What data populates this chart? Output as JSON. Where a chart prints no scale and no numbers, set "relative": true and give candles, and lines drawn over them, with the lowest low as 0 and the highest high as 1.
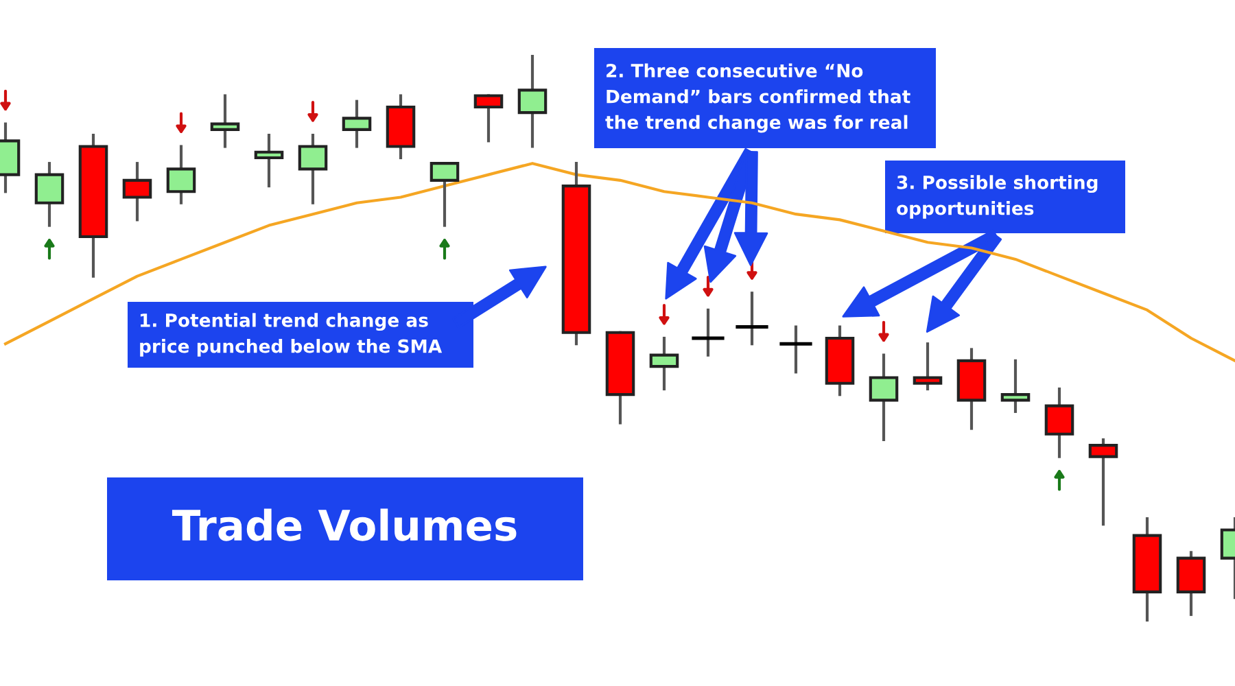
{
  "chart_data": {
    "type": "candlestick",
    "relative": true,
    "title": "Trade Volumes",
    "categories": [
      null,
      null,
      null,
      null,
      null,
      null,
      null,
      null,
      null,
      null,
      null,
      null,
      null,
      null,
      null,
      null,
      null,
      null,
      null,
      null,
      null,
      null,
      null,
      null,
      null,
      null,
      null,
      null,
      null
    ],
    "ohlc": [
      [
        0.79,
        0.88,
        0.76,
        0.85
      ],
      [
        0.74,
        0.81,
        0.7,
        0.79
      ],
      [
        0.84,
        0.86,
        0.61,
        0.68
      ],
      [
        0.78,
        0.81,
        0.71,
        0.75
      ],
      [
        0.76,
        0.84,
        0.74,
        0.8
      ],
      [
        0.87,
        0.93,
        0.84,
        0.88
      ],
      [
        0.82,
        0.86,
        0.77,
        0.83
      ],
      [
        0.8,
        0.86,
        0.74,
        0.84
      ],
      [
        0.87,
        0.92,
        0.84,
        0.89
      ],
      [
        0.91,
        0.93,
        0.82,
        0.84
      ],
      [
        0.78,
        0.81,
        0.7,
        0.81
      ],
      [
        0.93,
        0.93,
        0.85,
        0.91
      ],
      [
        0.9,
        1.0,
        0.84,
        0.94
      ],
      [
        0.77,
        0.81,
        0.49,
        0.51
      ],
      [
        0.51,
        0.51,
        0.35,
        0.4
      ],
      [
        0.45,
        0.5,
        0.41,
        0.47
      ],
      [
        0.5,
        0.55,
        0.47,
        0.5
      ],
      [
        0.52,
        0.58,
        0.49,
        0.52
      ],
      [
        0.49,
        0.52,
        0.44,
        0.49
      ],
      [
        0.5,
        0.52,
        0.4,
        0.42
      ],
      [
        0.39,
        0.47,
        0.32,
        0.43
      ],
      [
        0.43,
        0.49,
        0.41,
        0.42
      ],
      [
        0.46,
        0.48,
        0.34,
        0.39
      ],
      [
        0.39,
        0.46,
        0.37,
        0.4
      ],
      [
        0.38,
        0.41,
        0.29,
        0.33
      ],
      [
        0.31,
        0.32,
        0.17,
        0.29
      ],
      [
        0.15,
        0.18,
        0.0,
        0.05
      ],
      [
        0.11,
        0.12,
        0.01,
        0.05
      ],
      [
        0.11,
        0.18,
        0.04,
        0.16
      ]
    ],
    "colors": [
      "#90ee90",
      "#90ee90",
      "#ff0000",
      "#ff0000",
      "#90ee90",
      "#90ee90",
      "#90ee90",
      "#90ee90",
      "#90ee90",
      "#ff0000",
      "#90ee90",
      "#ff0000",
      "#90ee90",
      "#ff0000",
      "#ff0000",
      "#90ee90",
      "#000000",
      "#000000",
      "#000000",
      "#ff0000",
      "#90ee90",
      "#ff0000",
      "#ff0000",
      "#90ee90",
      "#ff0000",
      "#ff0000",
      "#ff0000",
      "#ff0000",
      "#90ee90"
    ],
    "series": [
      {
        "type": "line",
        "color": "#f5a623",
        "values": [
          0.49,
          0.53,
          0.57,
          0.61,
          0.64,
          0.67,
          0.7,
          0.72,
          0.74,
          0.75,
          0.77,
          0.79,
          0.81,
          0.79,
          0.78,
          0.76,
          0.75,
          0.74,
          0.72,
          0.71,
          0.69,
          0.67,
          0.66,
          0.64,
          0.61,
          0.58,
          0.55,
          0.5,
          0.46
        ]
      }
    ],
    "annotations": [
      "1. Potential trend change as price punched below the SMA",
      "2. Three consecutive “No Demand” bars confirmed that the trend change was for real",
      "3. Possible shorting opportunities"
    ]
  }
}
